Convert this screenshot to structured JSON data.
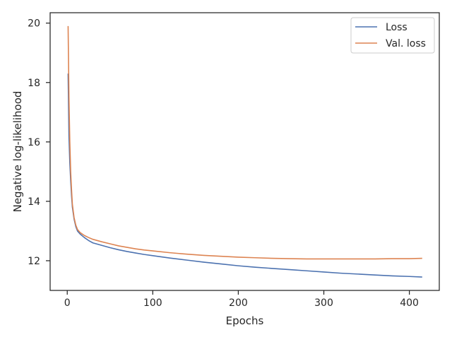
{
  "chart_data": {
    "type": "line",
    "title": "",
    "xlabel": "Epochs",
    "ylabel": "Negative log-likelihood",
    "xlim": [
      -20,
      435
    ],
    "ylim": [
      11.0,
      20.35
    ],
    "xticks": [
      0,
      100,
      200,
      300,
      400
    ],
    "yticks": [
      12,
      14,
      16,
      18,
      20
    ],
    "grid": false,
    "legend_position": "top-right",
    "series": [
      {
        "name": "Loss",
        "color": "#4c72b0",
        "x": [
          1,
          2,
          3,
          4,
          5,
          6,
          8,
          10,
          12,
          15,
          20,
          25,
          30,
          40,
          50,
          60,
          70,
          80,
          90,
          100,
          120,
          140,
          160,
          180,
          200,
          220,
          240,
          260,
          280,
          300,
          320,
          340,
          360,
          380,
          400,
          415
        ],
        "y": [
          18.3,
          16.2,
          15.3,
          14.7,
          14.2,
          13.8,
          13.4,
          13.15,
          13.0,
          12.9,
          12.78,
          12.68,
          12.6,
          12.52,
          12.44,
          12.37,
          12.31,
          12.26,
          12.21,
          12.17,
          12.09,
          12.02,
          11.95,
          11.89,
          11.83,
          11.78,
          11.74,
          11.7,
          11.66,
          11.62,
          11.58,
          11.55,
          11.52,
          11.49,
          11.47,
          11.45
        ]
      },
      {
        "name": "Val. loss",
        "color": "#dd8452",
        "x": [
          1,
          2,
          3,
          4,
          5,
          6,
          8,
          10,
          12,
          15,
          20,
          25,
          30,
          40,
          50,
          60,
          70,
          80,
          90,
          100,
          120,
          140,
          160,
          180,
          200,
          220,
          240,
          260,
          280,
          300,
          320,
          340,
          360,
          380,
          400,
          415
        ],
        "y": [
          19.9,
          17.5,
          16.0,
          15.0,
          14.4,
          13.9,
          13.45,
          13.2,
          13.05,
          12.95,
          12.85,
          12.78,
          12.72,
          12.64,
          12.57,
          12.5,
          12.45,
          12.4,
          12.36,
          12.33,
          12.27,
          12.22,
          12.18,
          12.15,
          12.12,
          12.1,
          12.08,
          12.07,
          12.06,
          12.06,
          12.06,
          12.06,
          12.06,
          12.07,
          12.07,
          12.08
        ]
      }
    ]
  }
}
